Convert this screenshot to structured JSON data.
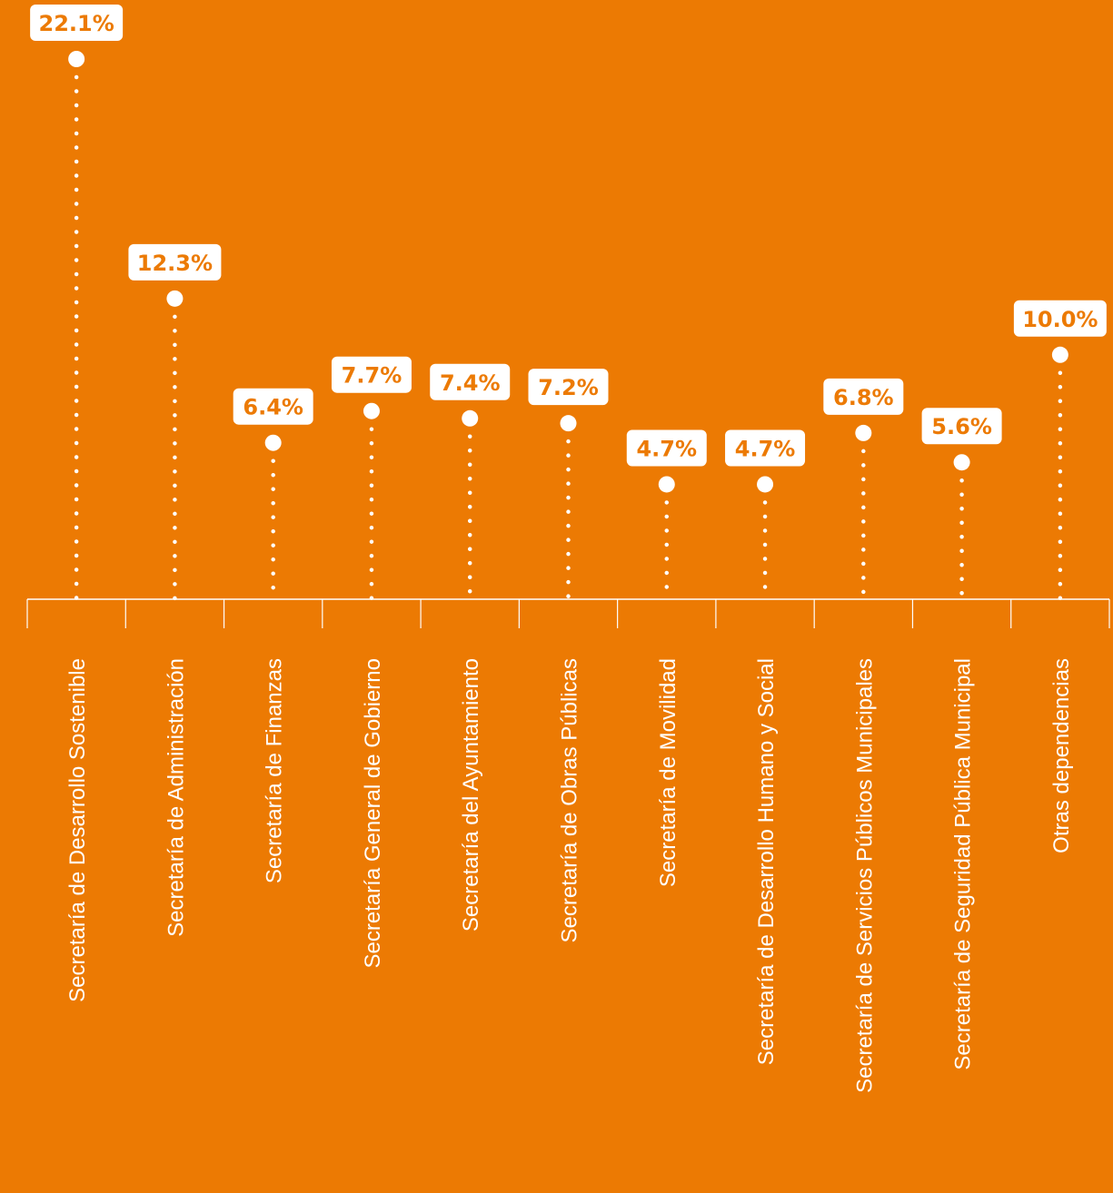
{
  "chart_data": {
    "type": "lollipop",
    "categories": [
      "Secretaría de Desarrollo Sostenible",
      "Secretaría de Administración",
      "Secretaría de Finanzas",
      "Secretaría General de Gobierno",
      "Secretaría del Ayuntamiento",
      "Secretaría de Obras Públicas",
      "Secretaría de Movilidad",
      "Secretaría de Desarrollo Humano y Social",
      "Secretaría de Servicios Públicos Municipales",
      "Secretaría de Seguridad Pública Municipal",
      "Otras dependencias"
    ],
    "values": [
      22.1,
      12.3,
      6.4,
      7.7,
      7.4,
      7.2,
      4.7,
      4.7,
      6.8,
      5.6,
      10.0
    ],
    "value_labels": [
      "22.1%",
      "12.3%",
      "6.4%",
      "7.7%",
      "7.4%",
      "7.2%",
      "4.7%",
      "4.7%",
      "6.8%",
      "5.6%",
      "10.0%"
    ],
    "unit": "%",
    "title": "",
    "xlabel": "",
    "ylabel": "",
    "ylim": [
      0,
      22.1
    ],
    "grid": false
  },
  "colors": {
    "background": "#EC7A03",
    "foreground": "#FFFFFF",
    "label_text": "#EC7A03"
  }
}
